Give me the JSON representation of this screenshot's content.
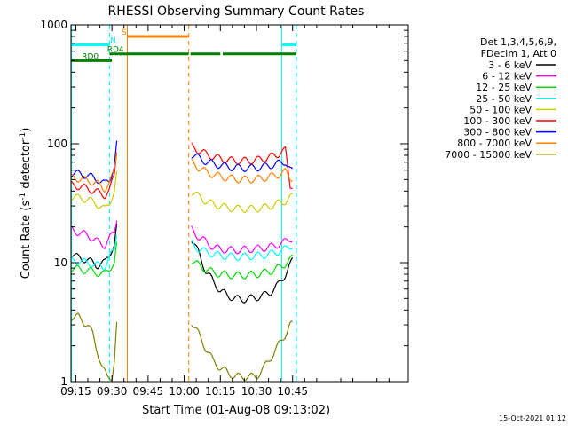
{
  "chart_data": {
    "type": "line",
    "title": "RHESSI Observing Summary Count Rates",
    "xlabel": "Start Time (01-Aug-08 09:13:02)",
    "ylabel_main": "Count Rate (s",
    "ylabel_sup": "-1",
    "ylabel_tail": " detector",
    "ylabel_close": ")",
    "yscale": "log",
    "ylim": [
      1,
      1000
    ],
    "xlim_min": [
      553,
      693
    ],
    "x_unit": "minutes since 00:00 UT",
    "y_ticks": [
      {
        "value": 1,
        "label": "1"
      },
      {
        "value": 10,
        "label": "10"
      },
      {
        "value": 100,
        "label": "100"
      },
      {
        "value": 1000,
        "label": "1000"
      }
    ],
    "x_ticks": [
      {
        "value": 555,
        "label": "09:15"
      },
      {
        "value": 570,
        "label": "09:30"
      },
      {
        "value": 585,
        "label": "09:45"
      },
      {
        "value": 600,
        "label": "10:00"
      },
      {
        "value": 615,
        "label": "10:15"
      },
      {
        "value": 630,
        "label": "10:30"
      },
      {
        "value": 645,
        "label": "10:45"
      }
    ],
    "legend_header": [
      "Det 1,3,4,5,6,9,",
      "FDecim 1, Att 0"
    ],
    "legend_position": "right",
    "series": [
      {
        "name": "3 - 6 keV",
        "color": "#000000",
        "points": [
          [
            553,
            12
          ],
          [
            556,
            11
          ],
          [
            560,
            10.5
          ],
          [
            564,
            9.5
          ],
          [
            567,
            10
          ],
          [
            569,
            12
          ],
          [
            571,
            14
          ],
          [
            572,
            20
          ],
          [
            603,
            16
          ],
          [
            606,
            12
          ],
          [
            609,
            8.5
          ],
          [
            612,
            7
          ],
          [
            615,
            5.8
          ],
          [
            618,
            5.3
          ],
          [
            621,
            5.0
          ],
          [
            624,
            4.9
          ],
          [
            627,
            5.0
          ],
          [
            630,
            5.1
          ],
          [
            633,
            5.3
          ],
          [
            636,
            5.7
          ],
          [
            639,
            6.5
          ],
          [
            642,
            8
          ],
          [
            644,
            9.5
          ],
          [
            645,
            10.5
          ]
        ]
      },
      {
        "name": "6 - 12 keV",
        "color": "#ff00ff",
        "points": [
          [
            553,
            19
          ],
          [
            556,
            18
          ],
          [
            560,
            17
          ],
          [
            564,
            15
          ],
          [
            567,
            14
          ],
          [
            569,
            16
          ],
          [
            571,
            18
          ],
          [
            572,
            24
          ],
          [
            603,
            19
          ],
          [
            606,
            16.5
          ],
          [
            609,
            15
          ],
          [
            612,
            13.5
          ],
          [
            615,
            13
          ],
          [
            618,
            12.8
          ],
          [
            621,
            12.7
          ],
          [
            624,
            12.8
          ],
          [
            627,
            13
          ],
          [
            630,
            13.1
          ],
          [
            633,
            13.3
          ],
          [
            636,
            13.6
          ],
          [
            639,
            14.2
          ],
          [
            642,
            15
          ],
          [
            644,
            16
          ],
          [
            645,
            16
          ]
        ]
      },
      {
        "name": "12 - 25 keV",
        "color": "#00dd00",
        "points": [
          [
            553,
            9
          ],
          [
            556,
            8.8
          ],
          [
            560,
            8.6
          ],
          [
            564,
            8.2
          ],
          [
            567,
            8
          ],
          [
            569,
            9
          ],
          [
            571,
            10
          ],
          [
            572,
            14
          ],
          [
            603,
            10.5
          ],
          [
            606,
            9.5
          ],
          [
            609,
            8.8
          ],
          [
            612,
            8.3
          ],
          [
            615,
            8.0
          ],
          [
            618,
            7.9
          ],
          [
            621,
            7.8
          ],
          [
            624,
            7.8
          ],
          [
            627,
            7.9
          ],
          [
            630,
            8.0
          ],
          [
            633,
            8.2
          ],
          [
            636,
            8.5
          ],
          [
            639,
            9.0
          ],
          [
            642,
            9.8
          ],
          [
            644,
            10.5
          ],
          [
            645,
            11
          ]
        ]
      },
      {
        "name": "25 - 50 keV",
        "color": "#00ffff",
        "points": [
          [
            553,
            10.5
          ],
          [
            556,
            10.3
          ],
          [
            560,
            10
          ],
          [
            564,
            9.5
          ],
          [
            567,
            9.3
          ],
          [
            569,
            11
          ],
          [
            571,
            13
          ],
          [
            572,
            18
          ],
          [
            603,
            14.5
          ],
          [
            606,
            13
          ],
          [
            609,
            12.3
          ],
          [
            612,
            11.8
          ],
          [
            615,
            11.5
          ],
          [
            618,
            11.3
          ],
          [
            621,
            11.2
          ],
          [
            624,
            11.2
          ],
          [
            627,
            11.3
          ],
          [
            630,
            11.4
          ],
          [
            633,
            11.6
          ],
          [
            636,
            11.9
          ],
          [
            639,
            12.4
          ],
          [
            642,
            13
          ],
          [
            644,
            13.8
          ],
          [
            645,
            14
          ]
        ]
      },
      {
        "name": "50 - 100 keV",
        "color": "#cccc00",
        "points": [
          [
            553,
            36
          ],
          [
            556,
            35
          ],
          [
            560,
            34
          ],
          [
            564,
            31
          ],
          [
            567,
            28
          ],
          [
            569,
            32
          ],
          [
            571,
            40
          ],
          [
            572,
            55
          ],
          [
            603,
            40
          ],
          [
            606,
            36
          ],
          [
            609,
            33
          ],
          [
            612,
            31
          ],
          [
            615,
            30
          ],
          [
            618,
            29
          ],
          [
            621,
            28.5
          ],
          [
            624,
            28.3
          ],
          [
            627,
            28.3
          ],
          [
            630,
            28.5
          ],
          [
            633,
            29
          ],
          [
            636,
            30
          ],
          [
            639,
            31.5
          ],
          [
            642,
            33
          ],
          [
            644,
            35
          ],
          [
            645,
            36
          ]
        ]
      },
      {
        "name": "100 - 300 keV",
        "color": "#ff0000",
        "points": [
          [
            553,
            45
          ],
          [
            556,
            44
          ],
          [
            560,
            42
          ],
          [
            564,
            39
          ],
          [
            567,
            37
          ],
          [
            569,
            40
          ],
          [
            571,
            55
          ],
          [
            572,
            90
          ],
          [
            603,
            95
          ],
          [
            606,
            88
          ],
          [
            609,
            82
          ],
          [
            612,
            78
          ],
          [
            615,
            75
          ],
          [
            618,
            73
          ],
          [
            621,
            72
          ],
          [
            624,
            72
          ],
          [
            627,
            72
          ],
          [
            630,
            73
          ],
          [
            633,
            75
          ],
          [
            636,
            78
          ],
          [
            639,
            82
          ],
          [
            642,
            88
          ],
          [
            644,
            45
          ],
          [
            645,
            45
          ]
        ]
      },
      {
        "name": "300 - 800 keV",
        "color": "#0000ff",
        "points": [
          [
            553,
            57
          ],
          [
            556,
            56
          ],
          [
            560,
            54
          ],
          [
            564,
            50
          ],
          [
            567,
            46
          ],
          [
            569,
            50
          ],
          [
            571,
            65
          ],
          [
            572,
            100
          ],
          [
            603,
            82
          ],
          [
            606,
            76
          ],
          [
            609,
            71
          ],
          [
            612,
            68
          ],
          [
            615,
            66
          ],
          [
            618,
            64
          ],
          [
            621,
            63
          ],
          [
            624,
            62.5
          ],
          [
            627,
            62.5
          ],
          [
            630,
            63
          ],
          [
            633,
            64
          ],
          [
            636,
            66
          ],
          [
            639,
            68
          ],
          [
            642,
            71
          ],
          [
            644,
            60
          ],
          [
            645,
            58
          ]
        ]
      },
      {
        "name": "800 - 7000 keV",
        "color": "#ff8000",
        "points": [
          [
            553,
            52
          ],
          [
            556,
            51
          ],
          [
            560,
            49
          ],
          [
            564,
            46
          ],
          [
            567,
            42
          ],
          [
            569,
            46
          ],
          [
            571,
            60
          ],
          [
            572,
            90
          ],
          [
            603,
            70
          ],
          [
            606,
            63
          ],
          [
            609,
            58
          ],
          [
            612,
            55
          ],
          [
            615,
            53
          ],
          [
            618,
            51.5
          ],
          [
            621,
            50.5
          ],
          [
            624,
            50
          ],
          [
            627,
            50
          ],
          [
            630,
            50.5
          ],
          [
            633,
            51.5
          ],
          [
            636,
            53
          ],
          [
            639,
            55
          ],
          [
            642,
            58
          ],
          [
            644,
            52
          ],
          [
            645,
            52
          ]
        ]
      },
      {
        "name": "7000 - 15000 keV",
        "color": "#808000",
        "points": [
          [
            553,
            3.5
          ],
          [
            556,
            3.5
          ],
          [
            558,
            3.2
          ],
          [
            560,
            3.0
          ],
          [
            562,
            2.5
          ],
          [
            564,
            1.8
          ],
          [
            566,
            1.3
          ],
          [
            568,
            1.1
          ],
          [
            570,
            1.1
          ],
          [
            571,
            1.5
          ],
          [
            572,
            3
          ],
          [
            603,
            3.2
          ],
          [
            606,
            2.5
          ],
          [
            609,
            1.9
          ],
          [
            612,
            1.5
          ],
          [
            615,
            1.3
          ],
          [
            618,
            1.2
          ],
          [
            621,
            1.1
          ],
          [
            624,
            1.1
          ],
          [
            627,
            1.1
          ],
          [
            630,
            1.1
          ],
          [
            633,
            1.3
          ],
          [
            636,
            1.6
          ],
          [
            639,
            2.0
          ],
          [
            642,
            2.5
          ],
          [
            644,
            3.0
          ],
          [
            645,
            3.0
          ]
        ]
      }
    ],
    "gaps": [
      [
        572.3,
        602.6
      ]
    ],
    "vertical_lines": [
      {
        "x": 553.2,
        "color": "#00ffff",
        "style": "solid"
      },
      {
        "x": 569.0,
        "color": "#00ffff",
        "style": "dashed"
      },
      {
        "x": 576.4,
        "color": "#ff8000",
        "style": "solid"
      },
      {
        "x": 601.9,
        "color": "#ff8000",
        "style": "dashed"
      },
      {
        "x": 640.5,
        "color": "#00ffff",
        "style": "solid"
      },
      {
        "x": 646.6,
        "color": "#00ffff",
        "style": "dashed"
      }
    ],
    "state_bars": [
      {
        "label": "N",
        "color": "#00ffff",
        "label_x": 570.5,
        "value": 680,
        "segments": [
          [
            553.2,
            569.0
          ],
          [
            640.5,
            646.6
          ]
        ]
      },
      {
        "label": "S",
        "color": "#ff8000",
        "label_x": 575.0,
        "value": 800,
        "segments": [
          [
            576.4,
            601.9
          ]
        ]
      },
      {
        "label": "RD0",
        "color": "#008000",
        "label_x": 561.0,
        "value": 500,
        "segments": [
          [
            553.2,
            570.0
          ]
        ]
      },
      {
        "label": "RD4",
        "color": "#008000",
        "label_x": 571.5,
        "value": 570,
        "segments": [
          [
            569.0,
            601.9
          ],
          [
            602.6,
            615.0
          ],
          [
            616.0,
            646.6
          ]
        ]
      }
    ]
  },
  "footer": {
    "timestamp": "15-Oct-2021 01:12"
  }
}
